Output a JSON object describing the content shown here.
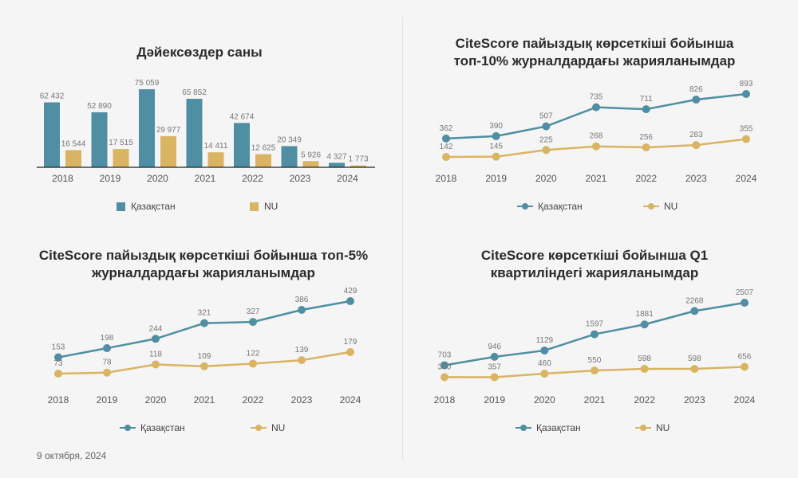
{
  "colors": {
    "kz": "#4f8ea3",
    "nu": "#d9b462",
    "axis": "#222222",
    "label": "#777777",
    "tick": "#555555"
  },
  "footer": {
    "date": "9 октября, 2024"
  },
  "chart_data": [
    {
      "type": "bar",
      "title": "Дәйексөздер саны",
      "categories": [
        "2018",
        "2019",
        "2020",
        "2021",
        "2022",
        "2023",
        "2024"
      ],
      "series": [
        {
          "name": "Қазақстан",
          "values": [
            62432,
            52890,
            75059,
            65852,
            42674,
            20349,
            4327
          ],
          "labels": [
            "62 432",
            "52 890",
            "75 059",
            "65 852",
            "42 674",
            "20 349",
            "4 327"
          ]
        },
        {
          "name": "NU",
          "values": [
            16544,
            17515,
            29977,
            14411,
            12625,
            5926,
            1773
          ],
          "labels": [
            "16 544",
            "17 515",
            "29 977",
            "14 411",
            "12 625",
            "5 926",
            "1 773"
          ]
        }
      ],
      "ylim": [
        0,
        80000
      ],
      "legend": "bottom"
    },
    {
      "type": "line",
      "title": "CiteScore пайыздық көрсеткіші бойынша топ-10% журналдардағы жарияланымдар",
      "categories": [
        "2018",
        "2019",
        "2020",
        "2021",
        "2022",
        "2023",
        "2024"
      ],
      "series": [
        {
          "name": "Қазақстан",
          "values": [
            362,
            390,
            507,
            735,
            711,
            826,
            893
          ]
        },
        {
          "name": "NU",
          "values": [
            142,
            145,
            225,
            268,
            256,
            283,
            355
          ]
        }
      ],
      "legend": "bottom"
    },
    {
      "type": "line",
      "title": "CiteScore пайыздық көрсеткіші бойынша топ-5% журналдардағы жарияланымдар",
      "categories": [
        "2018",
        "2019",
        "2020",
        "2021",
        "2022",
        "2023",
        "2024"
      ],
      "series": [
        {
          "name": "Қазақстан",
          "values": [
            153,
            198,
            244,
            321,
            327,
            386,
            429
          ]
        },
        {
          "name": "NU",
          "values": [
            73,
            78,
            118,
            109,
            122,
            139,
            179
          ]
        }
      ],
      "legend": "bottom"
    },
    {
      "type": "line",
      "title": "CiteScore көрсеткіші бойынша Q1 квартиліндегі жарияланымдар",
      "categories": [
        "2018",
        "2019",
        "2020",
        "2021",
        "2022",
        "2023",
        "2024"
      ],
      "series": [
        {
          "name": "Қазақстан",
          "values": [
            703,
            946,
            1129,
            1597,
            1881,
            2268,
            2507
          ]
        },
        {
          "name": "NU",
          "values": [
            360,
            357,
            460,
            550,
            598,
            598,
            656
          ]
        }
      ],
      "legend": "bottom"
    }
  ]
}
